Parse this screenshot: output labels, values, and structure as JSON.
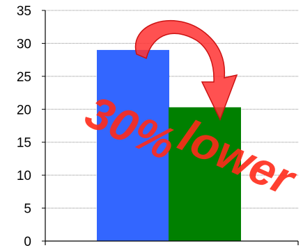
{
  "chart_data": {
    "type": "bar",
    "categories": [
      "",
      ""
    ],
    "values": [
      29,
      20.3
    ],
    "colors": [
      "#3366ff",
      "#008000"
    ],
    "ylim": [
      0,
      35
    ],
    "yticks": [
      0,
      5,
      10,
      15,
      20,
      25,
      30,
      35
    ],
    "grid": true,
    "title": "",
    "xlabel": "",
    "ylabel": "",
    "annotation": {
      "text_number": "30%",
      "text_word": "lower",
      "color": "#ff2a1a",
      "arrow_color": "#ff3333",
      "arrow_direction": "from first bar to second bar"
    }
  }
}
